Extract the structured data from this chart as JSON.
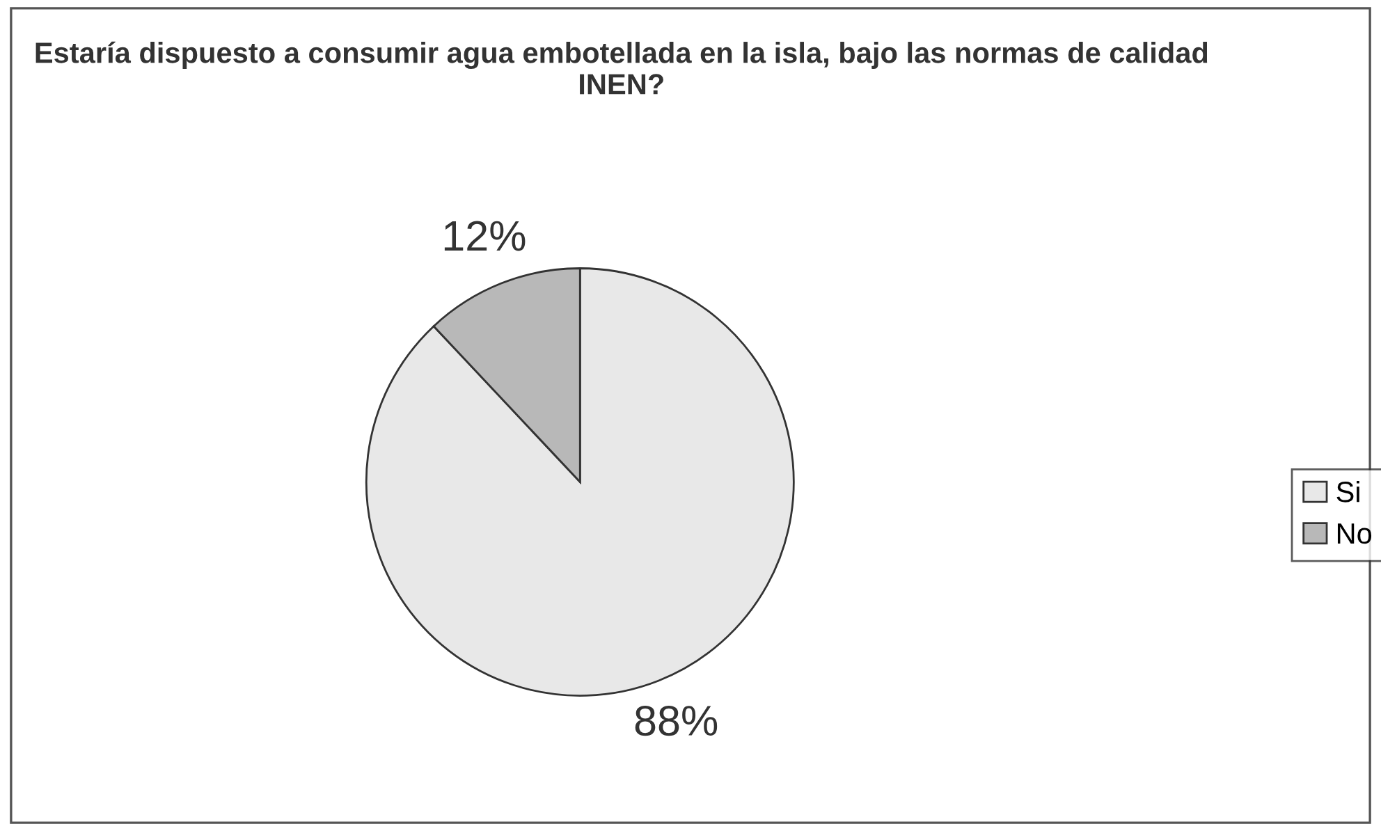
{
  "chart_data": {
    "type": "pie",
    "title": "Estaría dispuesto a consumir agua embotellada en la isla, bajo las normas de calidad INEN?",
    "categories": [
      "Si",
      "No"
    ],
    "values": [
      88,
      12
    ],
    "colors": [
      "#e8e8e8",
      "#b8b8b8"
    ],
    "value_labels": [
      "88%",
      "12%"
    ],
    "legend": "right"
  }
}
